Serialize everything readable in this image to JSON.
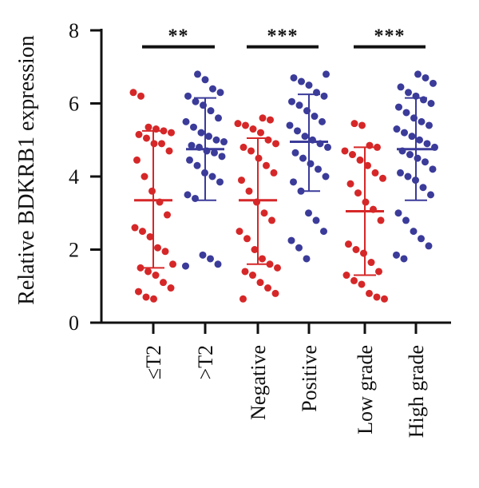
{
  "chart_data": {
    "type": "scatter",
    "subtype": "dot-plot-with-mean-sd",
    "ylabel": "Relative BDKRB1 expression",
    "ylim": [
      0,
      8
    ],
    "yticks": [
      "0",
      "2",
      "4",
      "6",
      "8"
    ],
    "grid": false,
    "categories": [
      "≤T2",
      ">T2",
      "Negative",
      "Positive",
      "Low grade",
      "High grade"
    ],
    "colors": {
      "red": "#d62728",
      "blue": "#3b3b9a"
    },
    "groups": [
      {
        "label": "≤T2",
        "color": "red",
        "mean": 3.35,
        "sd_low": 1.5,
        "sd_high": 5.25,
        "points": [
          6.3,
          6.2,
          5.35,
          5.3,
          5.25,
          5.2,
          5.15,
          5.05,
          4.9,
          4.9,
          4.7,
          4.45,
          4.0,
          3.6,
          3.3,
          2.95,
          2.6,
          2.5,
          2.35,
          2.05,
          1.95,
          1.6,
          1.5,
          1.4,
          1.3,
          1.1,
          0.95,
          0.85,
          0.7,
          0.65
        ]
      },
      {
        "label": ">T2",
        "color": "blue",
        "mean": 4.75,
        "sd_low": 3.35,
        "sd_high": 6.15,
        "points": [
          6.8,
          6.65,
          6.4,
          6.3,
          6.2,
          6.05,
          5.95,
          5.8,
          5.6,
          5.5,
          5.35,
          5.2,
          5.1,
          5.0,
          4.95,
          4.85,
          4.8,
          4.7,
          4.65,
          4.55,
          4.45,
          4.3,
          4.1,
          4.0,
          3.85,
          3.5,
          3.4,
          1.85,
          1.75,
          1.6,
          1.55
        ]
      },
      {
        "label": "Negative",
        "color": "red",
        "mean": 3.35,
        "sd_low": 1.6,
        "sd_high": 5.05,
        "points": [
          5.6,
          5.55,
          5.45,
          5.4,
          5.3,
          5.2,
          5.0,
          4.9,
          4.8,
          4.7,
          4.5,
          4.3,
          4.1,
          3.9,
          3.6,
          3.3,
          3.0,
          2.8,
          2.5,
          2.3,
          2.0,
          1.75,
          1.6,
          1.5,
          1.4,
          1.3,
          1.1,
          0.95,
          0.8,
          0.65
        ]
      },
      {
        "label": "Positive",
        "color": "blue",
        "mean": 4.95,
        "sd_low": 3.6,
        "sd_high": 6.25,
        "points": [
          6.8,
          6.7,
          6.6,
          6.5,
          6.3,
          6.2,
          6.05,
          5.95,
          5.8,
          5.65,
          5.5,
          5.4,
          5.25,
          5.1,
          5.0,
          4.9,
          4.8,
          4.65,
          4.5,
          4.35,
          4.2,
          4.0,
          3.85,
          3.6,
          3.0,
          2.8,
          2.5,
          2.25,
          2.05,
          1.75
        ]
      },
      {
        "label": "Low grade",
        "color": "red",
        "mean": 3.05,
        "sd_low": 1.3,
        "sd_high": 4.8,
        "points": [
          5.45,
          5.4,
          4.85,
          4.8,
          4.7,
          4.6,
          4.45,
          4.3,
          4.1,
          3.95,
          3.8,
          3.55,
          3.3,
          3.1,
          2.8,
          2.15,
          2.0,
          1.9,
          1.65,
          1.4,
          1.3,
          1.15,
          1.05,
          0.8,
          0.7,
          0.65
        ]
      },
      {
        "label": "High grade",
        "color": "blue",
        "mean": 4.75,
        "sd_low": 3.35,
        "sd_high": 6.15,
        "points": [
          6.8,
          6.7,
          6.55,
          6.45,
          6.3,
          6.2,
          6.1,
          6.0,
          5.9,
          5.75,
          5.6,
          5.5,
          5.4,
          5.3,
          5.2,
          5.1,
          5.0,
          4.9,
          4.8,
          4.7,
          4.6,
          4.5,
          4.4,
          4.2,
          4.1,
          4.0,
          3.9,
          3.7,
          3.5,
          3.0,
          2.8,
          2.5,
          2.3,
          2.1,
          1.85,
          1.75
        ]
      }
    ],
    "significance": [
      {
        "label": "**",
        "from": 0,
        "to": 1,
        "y": 7.55
      },
      {
        "label": "***",
        "from": 2,
        "to": 3,
        "y": 7.55
      },
      {
        "label": "***",
        "from": 4,
        "to": 5,
        "y": 7.55
      }
    ]
  }
}
